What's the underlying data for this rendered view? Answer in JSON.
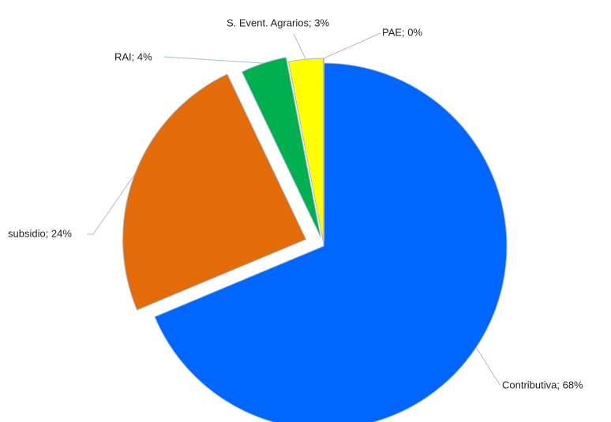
{
  "chart_data": {
    "type": "pie",
    "values": [
      68,
      24,
      4,
      3,
      0
    ],
    "value_labels": [
      "Contributiva; 68%",
      "subsidio; 24%",
      "RAI; 4%",
      "S. Event. Agrarios; 3%",
      "PAE; 0%"
    ],
    "colors": [
      "#0066ff",
      "#e36c09",
      "#00b050",
      "#ffff00",
      "#ffffff"
    ]
  }
}
